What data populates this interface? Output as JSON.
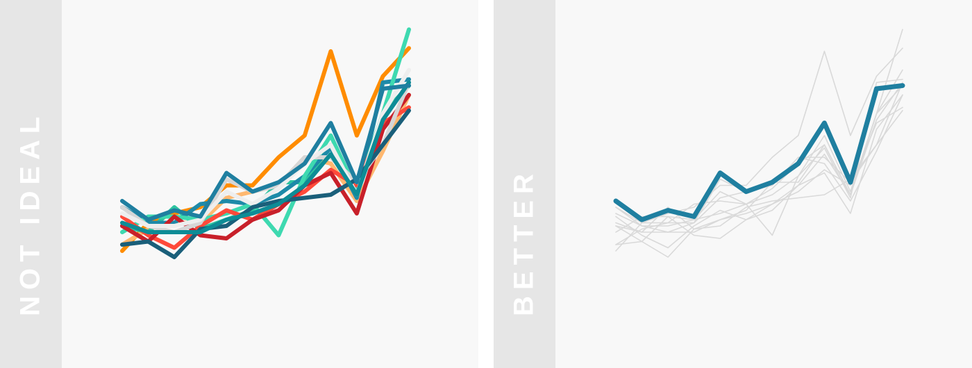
{
  "panels": {
    "left": {
      "label": "NOT IDEAL"
    },
    "right": {
      "label": "BETTER"
    }
  },
  "colors": {
    "panel_bg": "#f8f8f8",
    "strip_bg": "#e6e6e6",
    "strip_text": "#ffffff",
    "muted_line": "#d9d9d9",
    "highlight": "#1f7fa0"
  },
  "chart_data": [
    {
      "type": "line",
      "panel": "left",
      "title": "",
      "xlabel": "",
      "ylabel": "",
      "grid": false,
      "legend": "none",
      "x": [
        1,
        2,
        3,
        4,
        5,
        6,
        7,
        8,
        9,
        10,
        11,
        12
      ],
      "ylim": [
        0,
        100
      ],
      "series": [
        {
          "color": "#ff8c00",
          "values": [
            24,
            33,
            36,
            38,
            45,
            45,
            54,
            61,
            88,
            61,
            80,
            89
          ]
        },
        {
          "color": "#ffb870",
          "values": [
            26,
            31,
            33,
            33,
            41,
            43,
            45,
            54,
            52,
            40,
            56,
            74
          ]
        },
        {
          "color": "#2ec4a0",
          "values": [
            32,
            30,
            38,
            31,
            34,
            37,
            46,
            46,
            58,
            42,
            68,
            77
          ]
        },
        {
          "color": "#1e8aa8",
          "values": [
            38,
            33,
            33,
            39,
            40,
            39,
            42,
            48,
            57,
            41,
            78,
            79
          ]
        },
        {
          "color": "#3ed9b0",
          "values": [
            30,
            35,
            35,
            34,
            36,
            39,
            29,
            48,
            61,
            43,
            68,
            95
          ]
        },
        {
          "color": "#ff4a3a",
          "values": [
            35,
            29,
            25,
            32,
            37,
            34,
            39,
            43,
            50,
            45,
            65,
            70
          ]
        },
        {
          "color": "#c8202a",
          "values": [
            32,
            27,
            35,
            29,
            28,
            34,
            37,
            45,
            49,
            36,
            63,
            74
          ]
        },
        {
          "color": "#d6d6d6",
          "values": [
            38,
            32,
            30,
            33,
            47,
            43,
            45,
            54,
            54,
            46,
            58,
            78
          ]
        },
        {
          "color": "#eeeeee",
          "values": [
            36,
            32,
            32,
            34,
            43,
            39,
            44,
            52,
            58,
            42,
            68,
            82
          ]
        },
        {
          "color": "#1a5f7a",
          "values": [
            26,
            27,
            22,
            31,
            32,
            38,
            40,
            41,
            42,
            47,
            58,
            69
          ]
        },
        {
          "color": "#0e8c96",
          "values": [
            33,
            30,
            30,
            30,
            34,
            36,
            39,
            45,
            55,
            42,
            66,
            78
          ]
        },
        {
          "color": "#1f7fa0",
          "values": [
            40,
            34,
            37,
            35,
            49,
            43,
            46,
            52,
            65,
            46,
            76,
            77
          ]
        }
      ]
    },
    {
      "type": "line",
      "panel": "right",
      "title": "",
      "xlabel": "",
      "ylabel": "",
      "grid": false,
      "legend": "none",
      "x": [
        1,
        2,
        3,
        4,
        5,
        6,
        7,
        8,
        9,
        10,
        11,
        12
      ],
      "ylim": [
        0,
        100
      ],
      "highlight_series_index": 11,
      "series": [
        {
          "color": "#d9d9d9",
          "values": [
            24,
            33,
            36,
            38,
            45,
            45,
            54,
            61,
            88,
            61,
            80,
            89
          ]
        },
        {
          "color": "#d9d9d9",
          "values": [
            26,
            31,
            33,
            33,
            41,
            43,
            45,
            54,
            52,
            40,
            56,
            74
          ]
        },
        {
          "color": "#d9d9d9",
          "values": [
            32,
            30,
            38,
            31,
            34,
            37,
            46,
            46,
            58,
            42,
            68,
            77
          ]
        },
        {
          "color": "#d9d9d9",
          "values": [
            38,
            33,
            33,
            39,
            40,
            39,
            42,
            48,
            57,
            41,
            78,
            79
          ]
        },
        {
          "color": "#d9d9d9",
          "values": [
            30,
            35,
            35,
            34,
            36,
            39,
            29,
            48,
            61,
            43,
            68,
            95
          ]
        },
        {
          "color": "#d9d9d9",
          "values": [
            35,
            29,
            25,
            32,
            37,
            34,
            39,
            43,
            50,
            45,
            65,
            70
          ]
        },
        {
          "color": "#d9d9d9",
          "values": [
            32,
            27,
            35,
            29,
            28,
            34,
            37,
            45,
            49,
            36,
            63,
            74
          ]
        },
        {
          "color": "#d9d9d9",
          "values": [
            38,
            32,
            30,
            33,
            47,
            43,
            45,
            54,
            54,
            46,
            58,
            78
          ]
        },
        {
          "color": "#d9d9d9",
          "values": [
            36,
            32,
            32,
            34,
            43,
            39,
            44,
            52,
            58,
            42,
            68,
            82
          ]
        },
        {
          "color": "#d9d9d9",
          "values": [
            26,
            27,
            22,
            31,
            32,
            38,
            40,
            41,
            42,
            47,
            58,
            69
          ]
        },
        {
          "color": "#d9d9d9",
          "values": [
            33,
            30,
            30,
            30,
            34,
            36,
            39,
            45,
            55,
            42,
            66,
            78
          ]
        },
        {
          "color": "#1f7fa0",
          "values": [
            40,
            34,
            37,
            35,
            49,
            43,
            46,
            52,
            65,
            46,
            76,
            77
          ]
        }
      ]
    }
  ]
}
